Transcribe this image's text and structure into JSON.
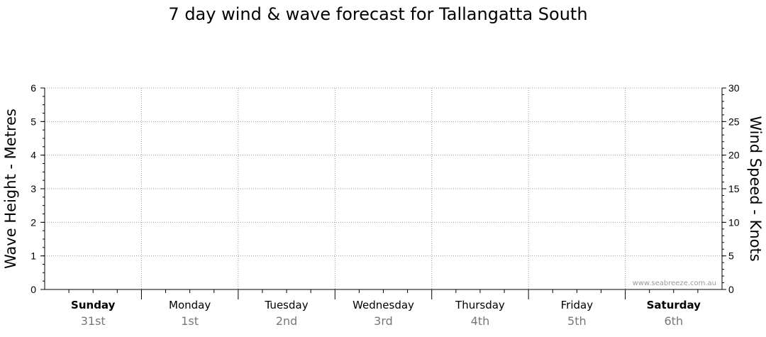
{
  "chart_data": {
    "type": "line",
    "title": "7 day wind & wave forecast for Tallangatta South",
    "ylabel_left": "Wave Height - Metres",
    "ylabel_right": "Wind Speed - Knots",
    "ylim_left": [
      0,
      6
    ],
    "ylim_right": [
      0,
      30
    ],
    "left_ticks": [
      "0",
      "1",
      "2",
      "3",
      "4",
      "5",
      "6"
    ],
    "right_ticks": [
      "0",
      "5",
      "10",
      "15",
      "20",
      "25",
      "30"
    ],
    "days": [
      {
        "name": "Sunday",
        "date": "31st",
        "bold": true
      },
      {
        "name": "Monday",
        "date": "1st",
        "bold": false
      },
      {
        "name": "Tuesday",
        "date": "2nd",
        "bold": false
      },
      {
        "name": "Wednesday",
        "date": "3rd",
        "bold": false
      },
      {
        "name": "Thursday",
        "date": "4th",
        "bold": false
      },
      {
        "name": "Friday",
        "date": "5th",
        "bold": false
      },
      {
        "name": "Saturday",
        "date": "6th",
        "bold": true
      }
    ],
    "series": [],
    "grid": true,
    "watermark": "www.seabreeze.com.au"
  }
}
